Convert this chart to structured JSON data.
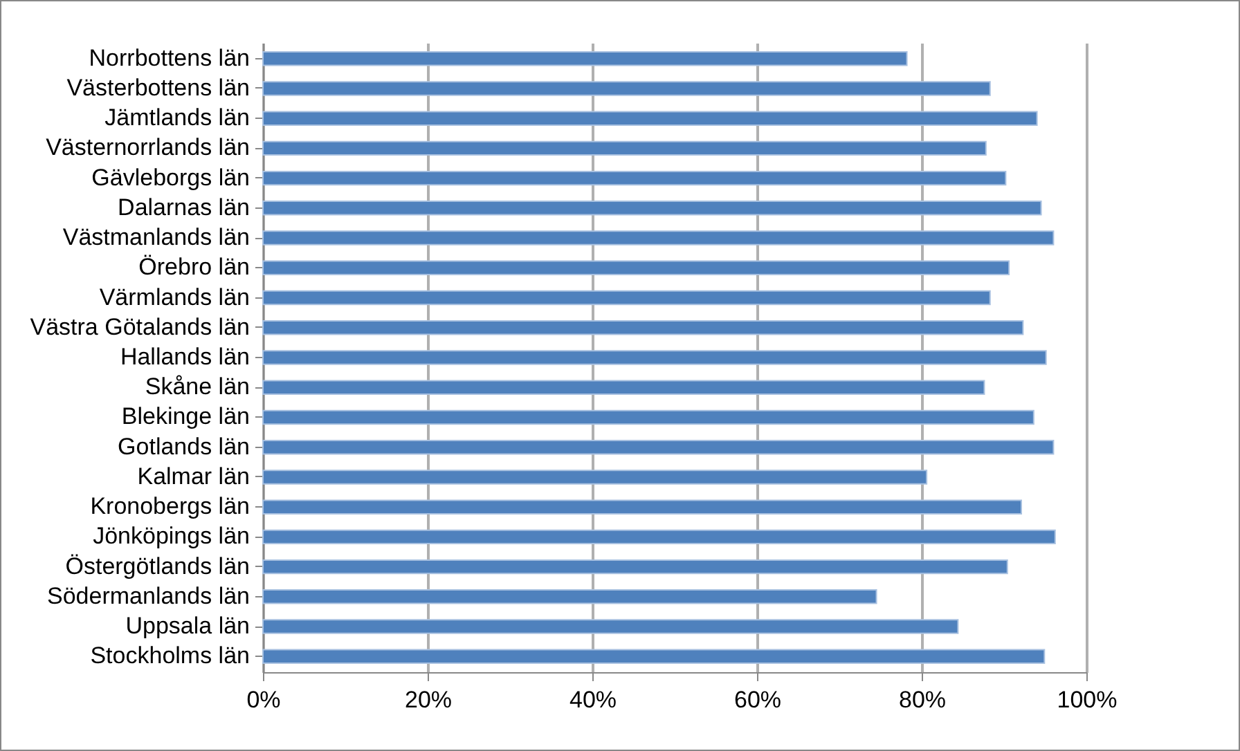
{
  "chart_data": {
    "type": "bar",
    "orientation": "horizontal",
    "categories": [
      "Norrbottens län",
      "Västerbottens län",
      "Jämtlands län",
      "Västernorrlands län",
      "Gävleborgs län",
      "Dalarnas län",
      "Västmanlands län",
      "Örebro län",
      "Värmlands län",
      "Västra Götalands län",
      "Hallands län",
      "Skåne län",
      "Blekinge län",
      "Gotlands län",
      "Kalmar län",
      "Kronobergs län",
      "Jönköpings län",
      "Östergötlands län",
      "Södermanlands län",
      "Uppsala län",
      "Stockholms län"
    ],
    "values": [
      78.2,
      88.3,
      94.0,
      87.8,
      90.2,
      94.5,
      96.0,
      90.6,
      88.3,
      92.3,
      95.1,
      87.6,
      93.6,
      96.0,
      80.6,
      92.1,
      96.2,
      90.4,
      74.5,
      84.4,
      94.9
    ],
    "color": "#4f81bd",
    "xlim": [
      0,
      100
    ],
    "xticks": [
      {
        "value": 0,
        "label": "0%"
      },
      {
        "value": 20,
        "label": "20%"
      },
      {
        "value": 40,
        "label": "40%"
      },
      {
        "value": 60,
        "label": "60%"
      },
      {
        "value": 80,
        "label": "80%"
      },
      {
        "value": 100,
        "label": "100%"
      }
    ],
    "grid": "x"
  }
}
